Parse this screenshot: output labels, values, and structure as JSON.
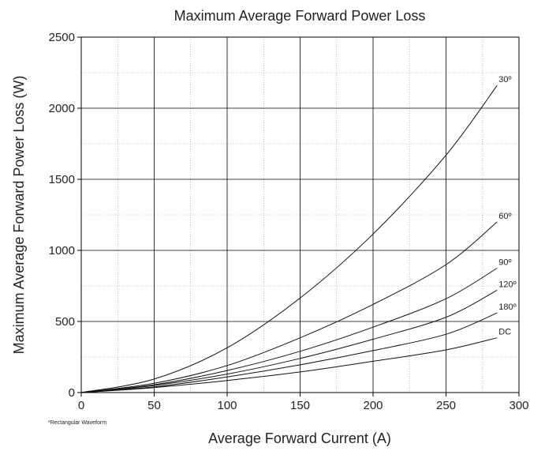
{
  "chart_data": {
    "type": "line",
    "title": "Maximum Average Forward Power Loss",
    "xlabel": "Average Forward Current (A)",
    "ylabel": "Maximum Average Forward Power Loss (W)",
    "xlim": [
      0,
      300
    ],
    "ylim": [
      0,
      2500
    ],
    "xticks": [
      0,
      50,
      100,
      150,
      200,
      250,
      300
    ],
    "yticks": [
      0,
      500,
      1000,
      1500,
      2000,
      2500
    ],
    "grid": true,
    "note": "*Rectangular Waveform",
    "series": [
      {
        "name": "30º",
        "x": [
          0,
          50,
          100,
          150,
          200,
          250,
          285
        ],
        "y": [
          0,
          95,
          315,
          665,
          1115,
          1670,
          2160
        ]
      },
      {
        "name": "60º",
        "x": [
          0,
          50,
          100,
          150,
          200,
          250,
          285
        ],
        "y": [
          0,
          65,
          190,
          385,
          620,
          900,
          1200
        ]
      },
      {
        "name": "90º",
        "x": [
          0,
          50,
          100,
          150,
          200,
          250,
          285
        ],
        "y": [
          0,
          55,
          155,
          290,
          460,
          660,
          875
        ]
      },
      {
        "name": "120º",
        "x": [
          0,
          50,
          100,
          150,
          200,
          250,
          285
        ],
        "y": [
          0,
          50,
          130,
          240,
          375,
          530,
          720
        ]
      },
      {
        "name": "180º",
        "x": [
          0,
          50,
          100,
          150,
          200,
          250,
          285
        ],
        "y": [
          0,
          40,
          110,
          195,
          295,
          410,
          560
        ]
      },
      {
        "name": "DC",
        "x": [
          0,
          50,
          100,
          150,
          200,
          250,
          285
        ],
        "y": [
          0,
          35,
          85,
          145,
          220,
          300,
          385
        ]
      }
    ]
  }
}
